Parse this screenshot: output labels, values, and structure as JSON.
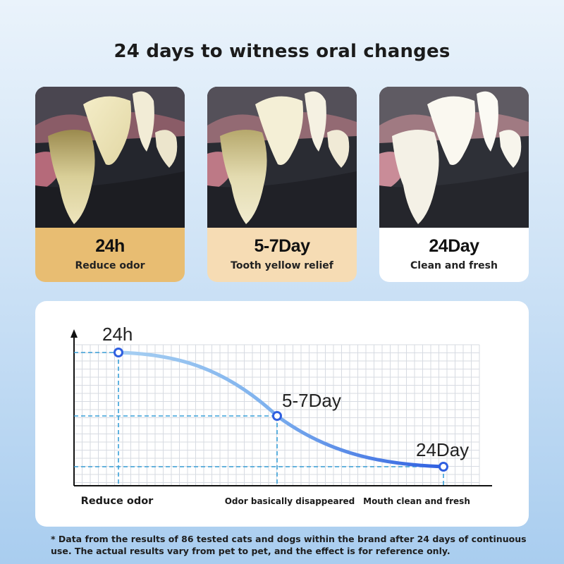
{
  "title": "24 days to witness oral changes",
  "cards": [
    {
      "time": "24h",
      "label": "Reduce odor",
      "caption_bg": "#e8bd72"
    },
    {
      "time": "5-7Day",
      "label": "Tooth yellow relief",
      "caption_bg": "#f6dcb4"
    },
    {
      "time": "24Day",
      "label": "Clean and fresh",
      "caption_bg": "#ffffff"
    }
  ],
  "chart_data": {
    "type": "line",
    "points": [
      {
        "label": "24h",
        "category": "Reduce odor"
      },
      {
        "label": "5-7Day",
        "category": "Odor basically disappeared"
      },
      {
        "label": "24Day",
        "category": "Mouth clean and fresh"
      }
    ],
    "grid": true,
    "line_colors": [
      "#a8d0f2",
      "#2f5fe0"
    ]
  },
  "footnote": "* Data from the results of 86 tested cats and dogs within the brand after 24 days of continuous use. The actual results vary from pet to pet, and the effect is for reference only."
}
